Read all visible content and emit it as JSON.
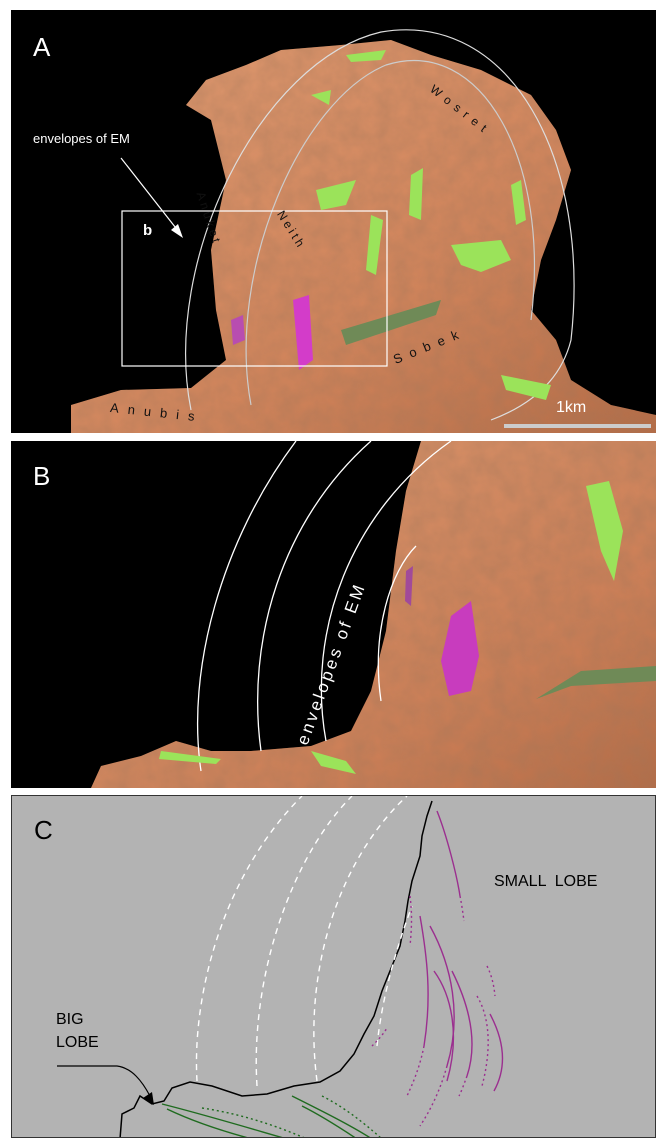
{
  "panels": {
    "A": {
      "label": "A",
      "inset_label": "b",
      "annotation": "envelopes of EM",
      "regions": [
        "Anuket",
        "Neith",
        "Wosret",
        "Sobek",
        "Anubis"
      ],
      "scalebar": "1km"
    },
    "B": {
      "label": "B",
      "annotation": "envelopes of EM"
    },
    "C": {
      "label": "C",
      "small_lobe": "SMALL  LOBE",
      "big_lobe_line1": "BIG",
      "big_lobe_line2": "LOBE"
    }
  },
  "colors": {
    "surface": "#d98c63",
    "surface_shadow": "#a8603e",
    "terrace_green": "#9be35a",
    "terrace_magenta": "#d33cc9",
    "panel_c_bg": "#b3b3b3",
    "outline": "#000000",
    "envelope": "#ffffff",
    "magenta_trace": "#9b2f8f",
    "green_trace": "#1f6b1f"
  }
}
